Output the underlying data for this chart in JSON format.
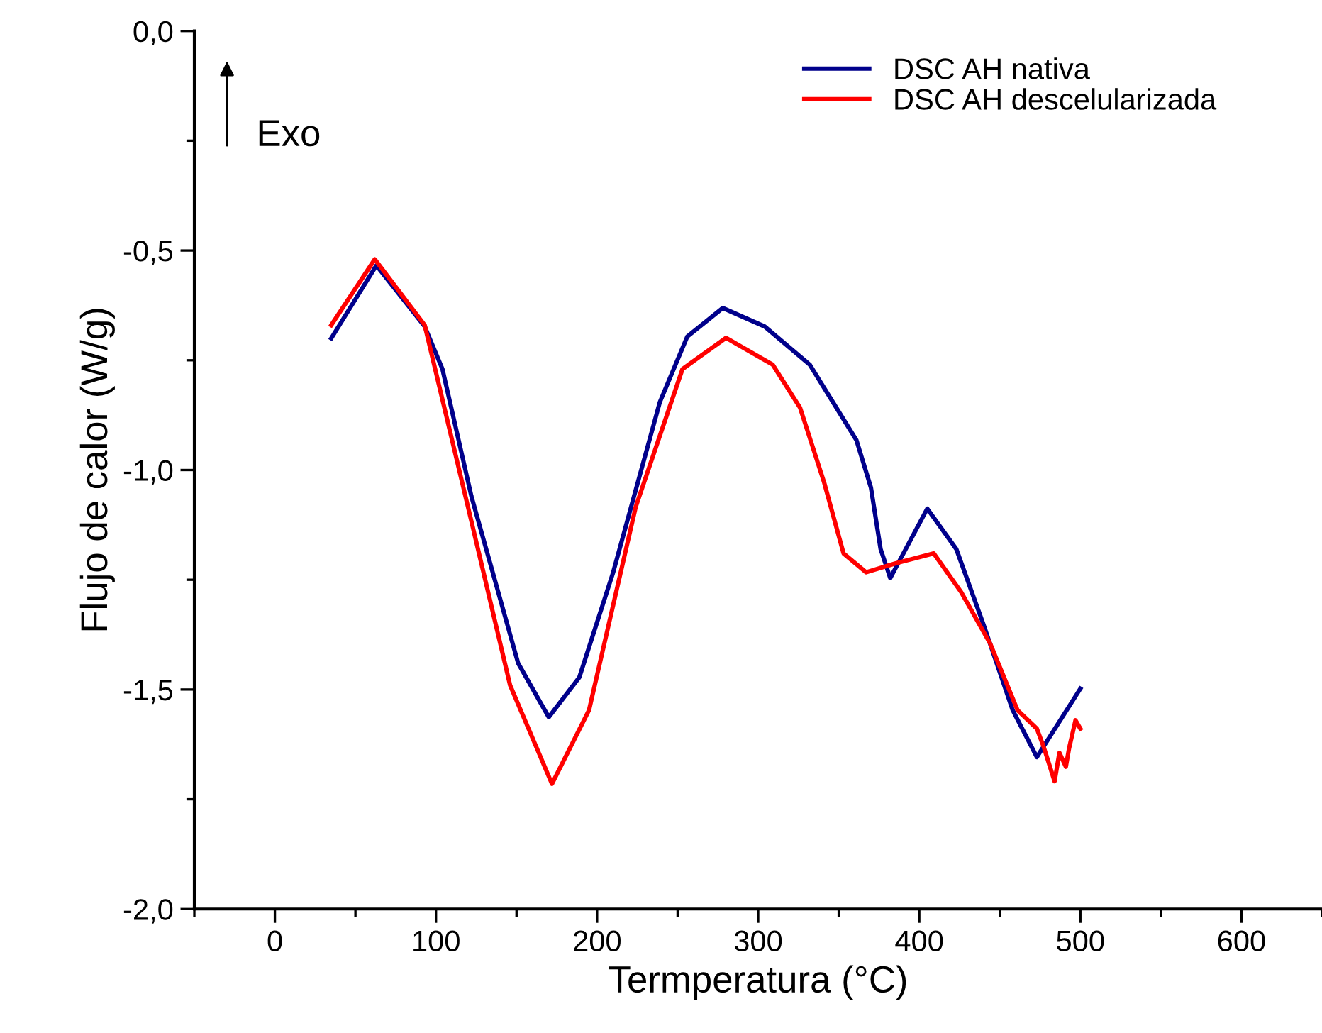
{
  "chart_data": {
    "type": "line",
    "xlabel": "Termperatura (°C)",
    "ylabel": "Flujo de calor (W/g)",
    "xlim": [
      -50,
      650
    ],
    "xticks": [
      0,
      100,
      200,
      300,
      400,
      500,
      600
    ],
    "ylim": [
      -2.0,
      0.0
    ],
    "yticks": [
      {
        "value": -2.0,
        "label": "-2,0"
      },
      {
        "value": -1.5,
        "label": "-1,5"
      },
      {
        "value": -1.0,
        "label": "-1,0"
      },
      {
        "value": -0.5,
        "label": "-0,5"
      },
      {
        "value": 0.0,
        "label": "0,0"
      }
    ],
    "grid": false,
    "legend": "top right",
    "marker": "none",
    "line_style": "solid",
    "annotations": [
      "Exo"
    ],
    "series": [
      {
        "name": "DSC AH nativa",
        "color": "#00008b",
        "x": [
          35,
          63,
          93,
          104,
          122,
          151,
          170,
          189,
          210,
          239,
          256,
          278,
          304,
          332,
          361,
          370,
          376,
          382,
          405,
          423,
          440,
          458,
          473,
          500
        ],
        "values": [
          -0.7,
          -0.534,
          -0.673,
          -0.77,
          -1.06,
          -1.44,
          -1.563,
          -1.472,
          -1.233,
          -0.845,
          -0.696,
          -0.631,
          -0.673,
          -0.76,
          -0.932,
          -1.04,
          -1.18,
          -1.246,
          -1.088,
          -1.18,
          -1.353,
          -1.547,
          -1.654,
          -1.498
        ]
      },
      {
        "name": "DSC AH descelularizada",
        "color": "#ff0000",
        "x": [
          35,
          62,
          93,
          122,
          146,
          172,
          195,
          224,
          253,
          280,
          309,
          326,
          341,
          353,
          367,
          385,
          409,
          426,
          444,
          461,
          473,
          477,
          484,
          487,
          491,
          493,
          497,
          500
        ],
        "values": [
          -0.67,
          -0.52,
          -0.67,
          -1.117,
          -1.49,
          -1.715,
          -1.547,
          -1.084,
          -0.77,
          -0.699,
          -0.76,
          -0.858,
          -1.029,
          -1.19,
          -1.233,
          -1.213,
          -1.19,
          -1.278,
          -1.395,
          -1.547,
          -1.589,
          -1.628,
          -1.709,
          -1.644,
          -1.676,
          -1.634,
          -1.57,
          -1.589
        ]
      }
    ]
  }
}
